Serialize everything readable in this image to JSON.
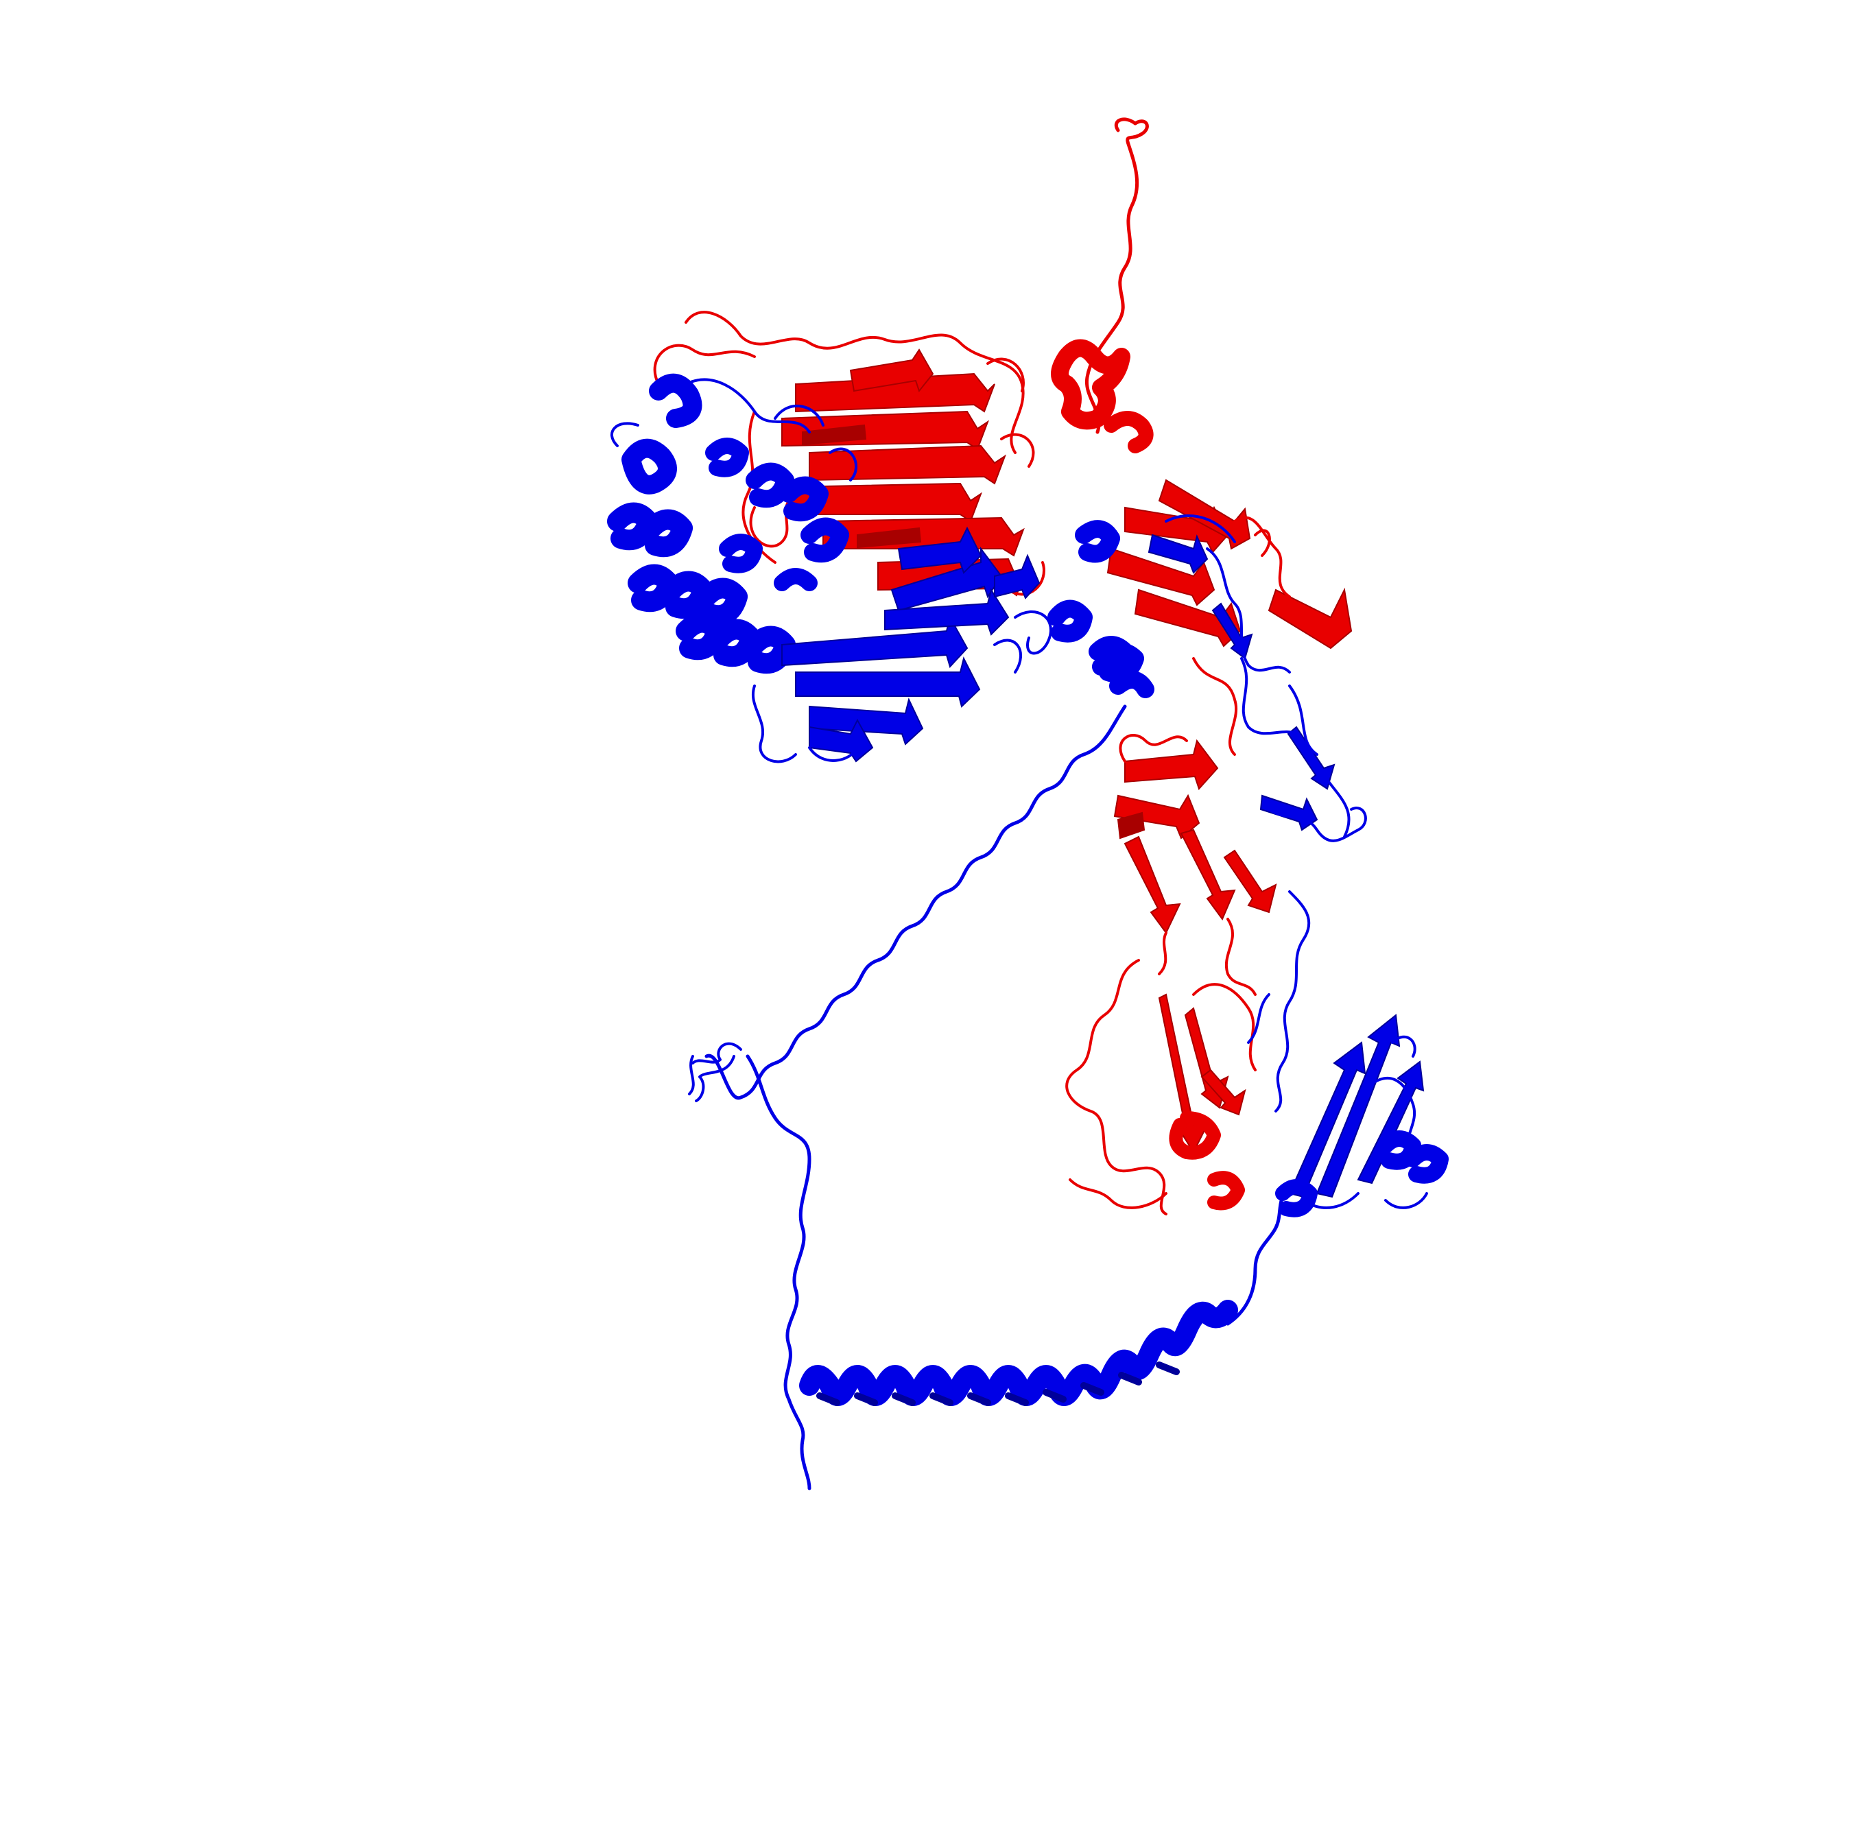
{
  "scene": {
    "kind": "protein-cartoon-render",
    "background_color": "#ffffff",
    "chains": [
      {
        "id": "A",
        "color": "#e80000",
        "shadow_color": "#a80000"
      },
      {
        "id": "B",
        "color": "#0000e6",
        "shadow_color": "#00009a"
      }
    ]
  }
}
